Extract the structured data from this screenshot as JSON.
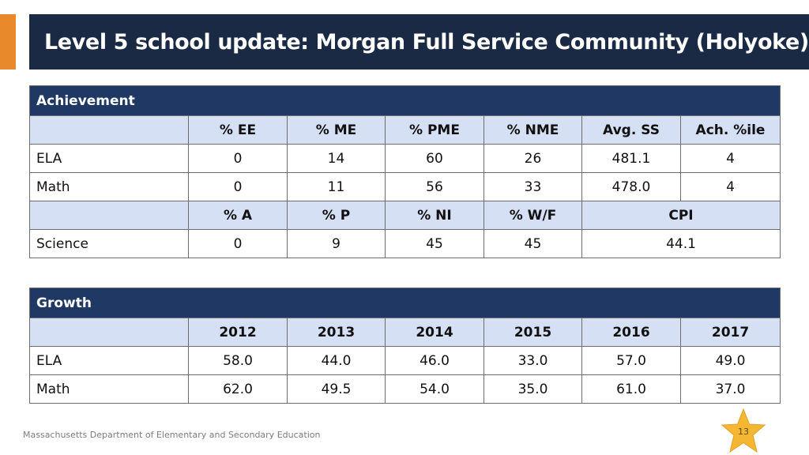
{
  "title": "Level 5 school update: Morgan Full Service Community (Holyoke)",
  "achievement": {
    "section_label": "Achievement",
    "headers": [
      "% EE",
      "% ME",
      "% PME",
      "% NME",
      "Avg. SS",
      "Ach. %ile"
    ],
    "rows": [
      {
        "label": "ELA",
        "values": [
          "0",
          "14",
          "60",
          "26",
          "481.1",
          "4"
        ]
      },
      {
        "label": "Math",
        "values": [
          "0",
          "11",
          "56",
          "33",
          "478.0",
          "4"
        ]
      }
    ],
    "science_headers": [
      "% A",
      "% P",
      "% NI",
      "% W/F",
      "CPI"
    ],
    "science_row": {
      "label": "Science",
      "values": [
        "0",
        "9",
        "45",
        "45",
        "44.1"
      ]
    }
  },
  "growth": {
    "section_label": "Growth",
    "headers": [
      "2012",
      "2013",
      "2014",
      "2015",
      "2016",
      "2017"
    ],
    "rows": [
      {
        "label": "ELA",
        "values": [
          "58.0",
          "44.0",
          "46.0",
          "33.0",
          "57.0",
          "49.0"
        ]
      },
      {
        "label": "Math",
        "values": [
          "62.0",
          "49.5",
          "54.0",
          "35.0",
          "61.0",
          "37.0"
        ]
      }
    ]
  },
  "footer": {
    "organization": "Massachusetts Department of Elementary and Secondary Education",
    "page_number": "13"
  },
  "colors": {
    "banner": "#1b2a44",
    "accent": "#e8892b",
    "section_header": "#1f3864",
    "column_header": "#d6e0f5",
    "star": "#f5b731"
  }
}
